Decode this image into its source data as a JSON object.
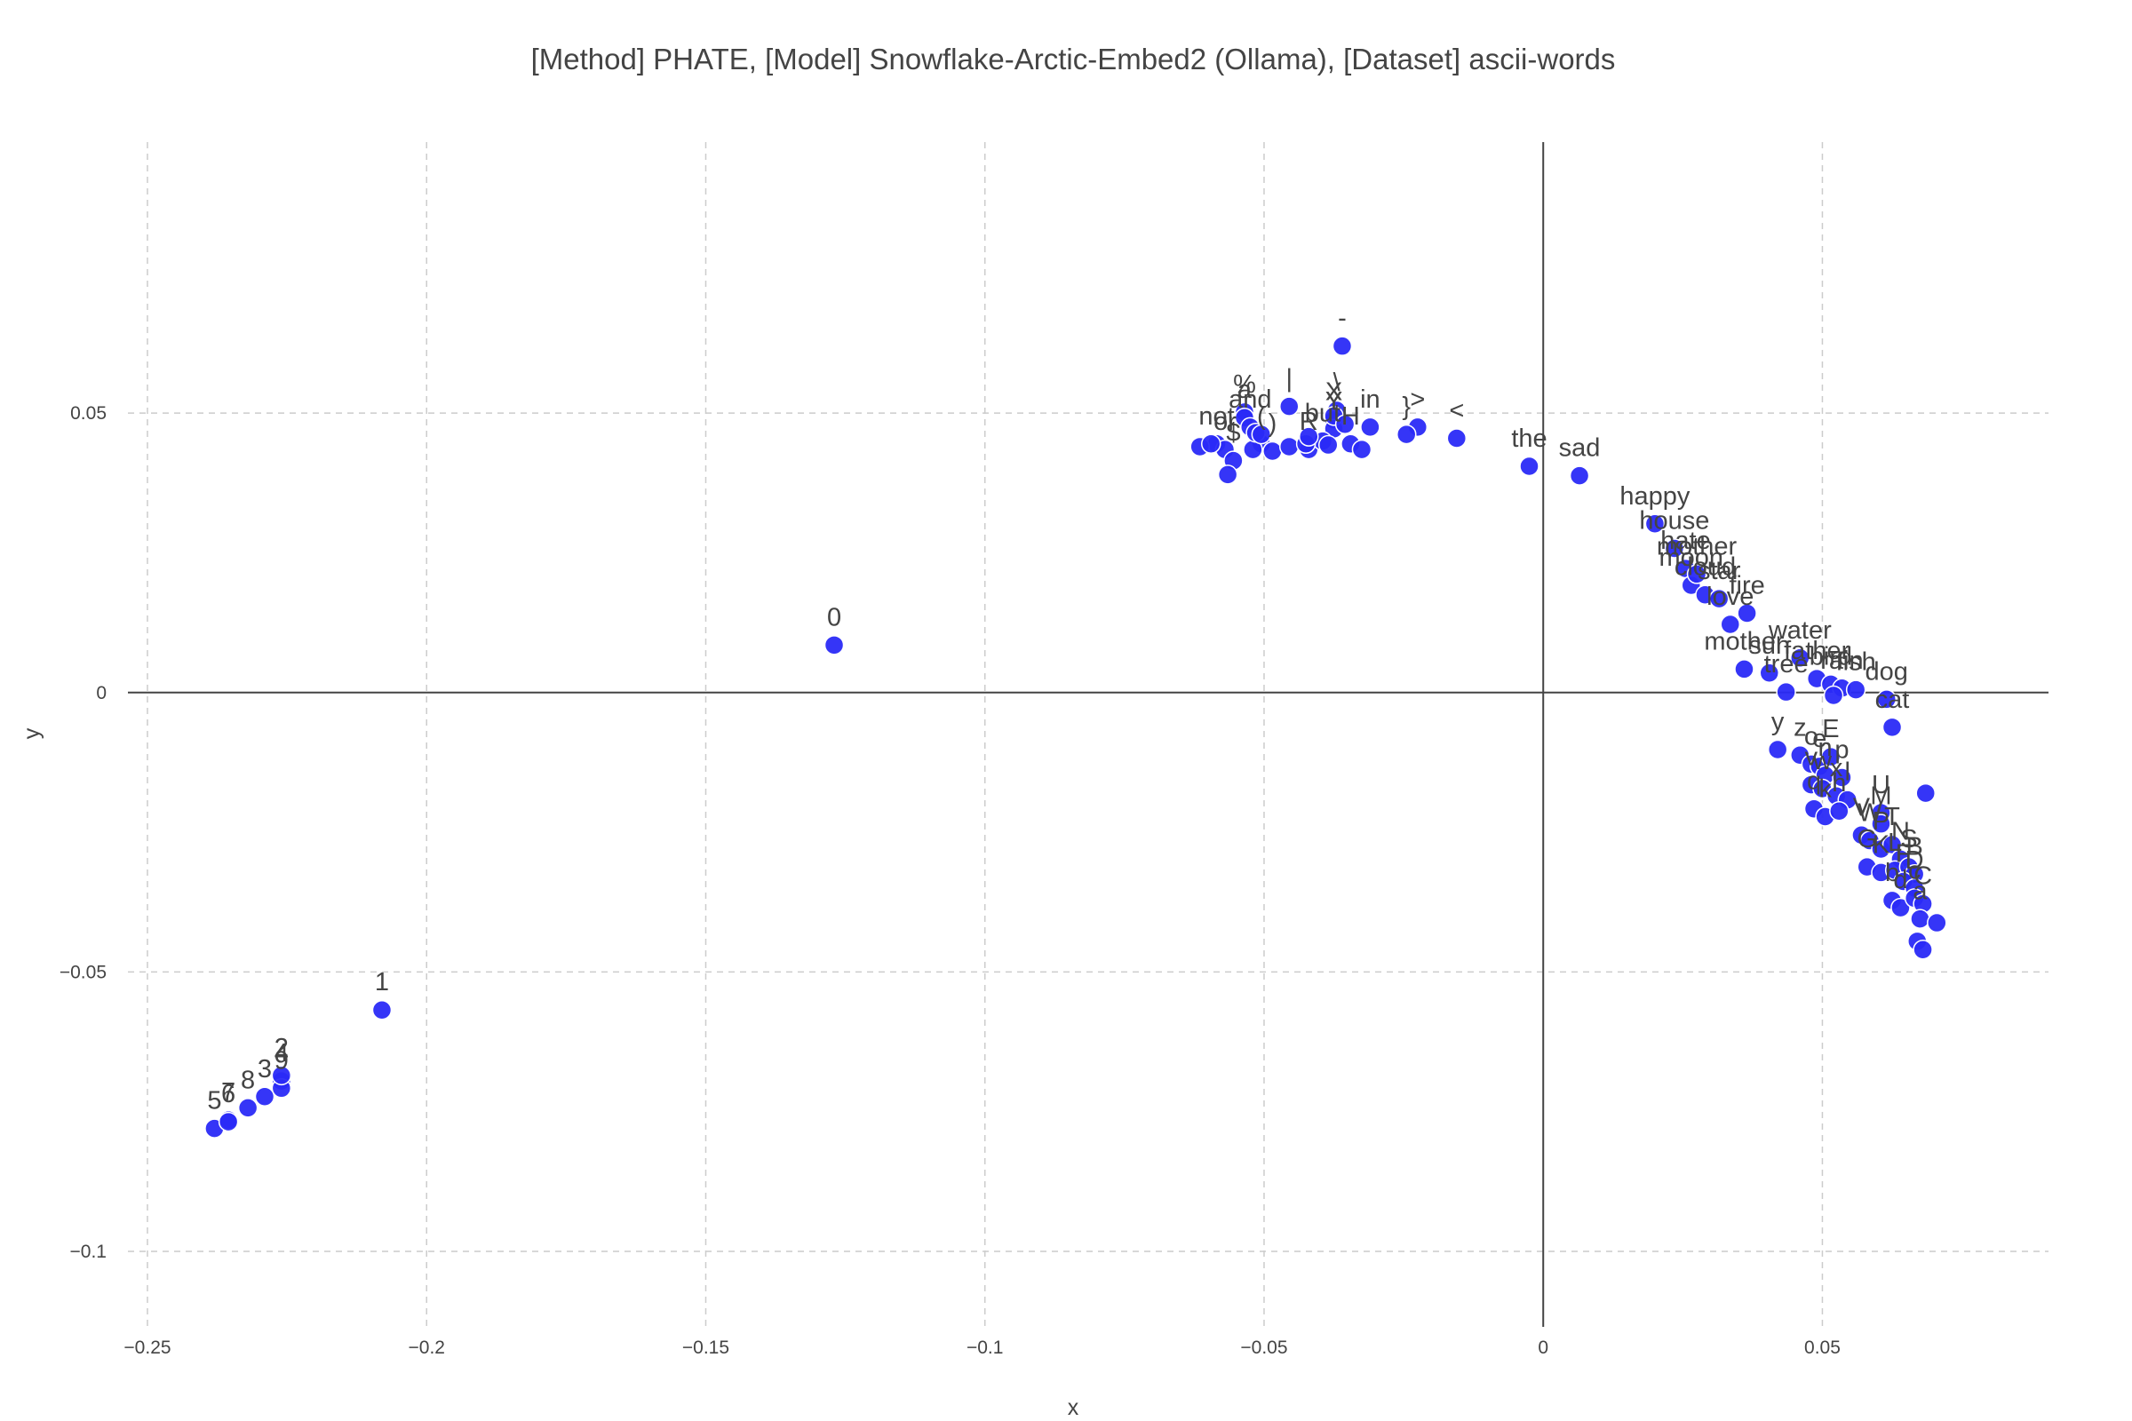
{
  "chart_data": {
    "type": "scatter",
    "title": "[Method] PHATE, [Model] Snowflake-Arctic-Embed2 (Ollama), [Dataset] ascii-words",
    "xlabel": "x",
    "ylabel": "y",
    "xlim": [
      -0.2535,
      0.0905
    ],
    "ylim": [
      -0.1135,
      0.0985
    ],
    "x_ticks": [
      {
        "value": -0.25,
        "label": "−0.25"
      },
      {
        "value": -0.2,
        "label": "−0.2"
      },
      {
        "value": -0.15,
        "label": "−0.15"
      },
      {
        "value": -0.1,
        "label": "−0.1"
      },
      {
        "value": -0.05,
        "label": "−0.05"
      },
      {
        "value": 0,
        "label": "0"
      },
      {
        "value": 0.05,
        "label": "0.05"
      }
    ],
    "y_ticks": [
      {
        "value": 0.05,
        "label": "0.05"
      },
      {
        "value": 0,
        "label": "0"
      },
      {
        "value": -0.05,
        "label": "−0.05"
      },
      {
        "value": -0.1,
        "label": "−0.1"
      }
    ],
    "grid": true,
    "marker_color": "#2a2af7",
    "points": [
      {
        "x": -0.208,
        "y": -0.0568,
        "label": "1"
      },
      {
        "x": -0.127,
        "y": 0.0085,
        "label": "0"
      },
      {
        "x": -0.238,
        "y": -0.078,
        "label": "5"
      },
      {
        "x": -0.2355,
        "y": -0.0765,
        "label": "7"
      },
      {
        "x": -0.2355,
        "y": -0.0768,
        "label": "6"
      },
      {
        "x": -0.232,
        "y": -0.0743,
        "label": "8"
      },
      {
        "x": -0.229,
        "y": -0.0723,
        "label": "3"
      },
      {
        "x": -0.226,
        "y": -0.0695,
        "label": "4"
      },
      {
        "x": -0.226,
        "y": -0.0708,
        "label": "9"
      },
      {
        "x": -0.226,
        "y": -0.0685,
        "label": "2"
      },
      {
        "x": -0.036,
        "y": 0.062,
        "label": "-"
      },
      {
        "x": -0.0455,
        "y": 0.0512,
        "label": "|"
      },
      {
        "x": -0.037,
        "y": 0.0505,
        "label": "\\"
      },
      {
        "x": -0.0375,
        "y": 0.0488,
        "label": "X"
      },
      {
        "x": -0.0375,
        "y": 0.0472,
        "label": "Y"
      },
      {
        "x": -0.031,
        "y": 0.0475,
        "label": "in"
      },
      {
        "x": -0.0225,
        "y": 0.0475,
        "label": ">"
      },
      {
        "x": -0.0245,
        "y": 0.0462,
        "label": "}"
      },
      {
        "x": -0.0155,
        "y": 0.0455,
        "label": "<"
      },
      {
        "x": -0.0025,
        "y": 0.0405,
        "label": "the"
      },
      {
        "x": 0.0065,
        "y": 0.0388,
        "label": "sad"
      },
      {
        "x": -0.0535,
        "y": 0.0502,
        "label": "%"
      },
      {
        "x": -0.0535,
        "y": 0.0492,
        "label": "a"
      },
      {
        "x": -0.0525,
        "y": 0.0475,
        "label": "and"
      },
      {
        "x": -0.0585,
        "y": 0.0445,
        "label": "not"
      },
      {
        "x": -0.057,
        "y": 0.0435,
        "label": "or"
      },
      {
        "x": -0.0555,
        "y": 0.0415,
        "label": "$"
      },
      {
        "x": -0.0505,
        "y": 0.0445,
        "label": "("
      },
      {
        "x": -0.0485,
        "y": 0.0432,
        "label": ")"
      },
      {
        "x": -0.042,
        "y": 0.0435,
        "label": "R"
      },
      {
        "x": -0.0395,
        "y": 0.045,
        "label": "but"
      },
      {
        "x": -0.0345,
        "y": 0.0445,
        "label": "H"
      },
      {
        "x": -0.0615,
        "y": 0.044,
        "label": ""
      },
      {
        "x": -0.0595,
        "y": 0.0445,
        "label": ""
      },
      {
        "x": -0.0565,
        "y": 0.039,
        "label": ""
      },
      {
        "x": -0.052,
        "y": 0.0435,
        "label": ""
      },
      {
        "x": -0.0515,
        "y": 0.0465,
        "label": ""
      },
      {
        "x": -0.0455,
        "y": 0.044,
        "label": ""
      },
      {
        "x": -0.0425,
        "y": 0.0445,
        "label": ""
      },
      {
        "x": -0.042,
        "y": 0.0458,
        "label": ""
      },
      {
        "x": -0.0385,
        "y": 0.0443,
        "label": ""
      },
      {
        "x": -0.0325,
        "y": 0.0435,
        "label": ""
      },
      {
        "x": -0.0375,
        "y": 0.0495,
        "label": ""
      },
      {
        "x": -0.0355,
        "y": 0.048,
        "label": ""
      },
      {
        "x": -0.0505,
        "y": 0.0462,
        "label": ""
      },
      {
        "x": 0.02,
        "y": 0.0302,
        "label": "happy"
      },
      {
        "x": 0.0235,
        "y": 0.0258,
        "label": "house"
      },
      {
        "x": 0.0255,
        "y": 0.0222,
        "label": "hate"
      },
      {
        "x": 0.0265,
        "y": 0.0192,
        "label": "moon"
      },
      {
        "x": 0.0275,
        "y": 0.0212,
        "label": "mother"
      },
      {
        "x": 0.029,
        "y": 0.0175,
        "label": "cloud"
      },
      {
        "x": 0.0315,
        "y": 0.0168,
        "label": "star"
      },
      {
        "x": 0.0335,
        "y": 0.0122,
        "label": "love"
      },
      {
        "x": 0.0365,
        "y": 0.0142,
        "label": "fire"
      },
      {
        "x": 0.036,
        "y": 0.0042,
        "label": "mother"
      },
      {
        "x": 0.0405,
        "y": 0.0035,
        "label": "sun"
      },
      {
        "x": 0.0435,
        "y": 0.0001,
        "label": "tree"
      },
      {
        "x": 0.046,
        "y": 0.0062,
        "label": "water"
      },
      {
        "x": 0.049,
        "y": 0.0025,
        "label": "father"
      },
      {
        "x": 0.0515,
        "y": 0.0015,
        "label": "bird"
      },
      {
        "x": 0.0535,
        "y": 0.0008,
        "label": "rain"
      },
      {
        "x": 0.056,
        "y": 0.0005,
        "label": "fish"
      },
      {
        "x": 0.0615,
        "y": -0.0012,
        "label": "dog"
      },
      {
        "x": 0.052,
        "y": -0.0005,
        "label": ""
      },
      {
        "x": 0.0625,
        "y": -0.0062,
        "label": "cat"
      },
      {
        "x": 0.0685,
        "y": -0.018,
        "label": ""
      },
      {
        "x": 0.042,
        "y": -0.0102,
        "label": "y"
      },
      {
        "x": 0.046,
        "y": -0.0112,
        "label": "z"
      },
      {
        "x": 0.048,
        "y": -0.0128,
        "label": "o"
      },
      {
        "x": 0.0495,
        "y": -0.0132,
        "label": "e"
      },
      {
        "x": 0.0515,
        "y": -0.0115,
        "label": "E"
      },
      {
        "x": 0.0505,
        "y": -0.0148,
        "label": "n"
      },
      {
        "x": 0.0535,
        "y": -0.0152,
        "label": "p"
      },
      {
        "x": 0.048,
        "y": -0.0165,
        "label": "v"
      },
      {
        "x": 0.05,
        "y": -0.0172,
        "label": "w"
      },
      {
        "x": 0.0525,
        "y": -0.0185,
        "label": "x"
      },
      {
        "x": 0.0545,
        "y": -0.0192,
        "label": "l"
      },
      {
        "x": 0.0485,
        "y": -0.0208,
        "label": "q"
      },
      {
        "x": 0.0505,
        "y": -0.0222,
        "label": "k"
      },
      {
        "x": 0.053,
        "y": -0.0212,
        "label": "h"
      },
      {
        "x": 0.0605,
        "y": -0.0215,
        "label": "U"
      },
      {
        "x": 0.0605,
        "y": -0.0235,
        "label": "M"
      },
      {
        "x": 0.057,
        "y": -0.0255,
        "label": "V"
      },
      {
        "x": 0.0585,
        "y": -0.0265,
        "label": "W"
      },
      {
        "x": 0.0605,
        "y": -0.028,
        "label": "P"
      },
      {
        "x": 0.0625,
        "y": -0.0272,
        "label": "T"
      },
      {
        "x": 0.064,
        "y": -0.0298,
        "label": "N"
      },
      {
        "x": 0.058,
        "y": -0.0312,
        "label": "G"
      },
      {
        "x": 0.0605,
        "y": -0.0322,
        "label": "K"
      },
      {
        "x": 0.063,
        "y": -0.0318,
        "label": "L"
      },
      {
        "x": 0.0655,
        "y": -0.0312,
        "label": "S"
      },
      {
        "x": 0.0665,
        "y": -0.0325,
        "label": "B"
      },
      {
        "x": 0.0645,
        "y": -0.0338,
        "label": "F"
      },
      {
        "x": 0.0665,
        "y": -0.035,
        "label": "D"
      },
      {
        "x": 0.0625,
        "y": -0.0372,
        "label": "b"
      },
      {
        "x": 0.064,
        "y": -0.0385,
        "label": "d"
      },
      {
        "x": 0.0665,
        "y": -0.0368,
        "label": "c"
      },
      {
        "x": 0.068,
        "y": -0.0378,
        "label": "C"
      },
      {
        "x": 0.0675,
        "y": -0.0405,
        "label": "a"
      },
      {
        "x": 0.0705,
        "y": -0.0412,
        "label": ""
      },
      {
        "x": 0.067,
        "y": -0.0445,
        "label": ""
      },
      {
        "x": 0.068,
        "y": -0.046,
        "label": ""
      }
    ]
  }
}
